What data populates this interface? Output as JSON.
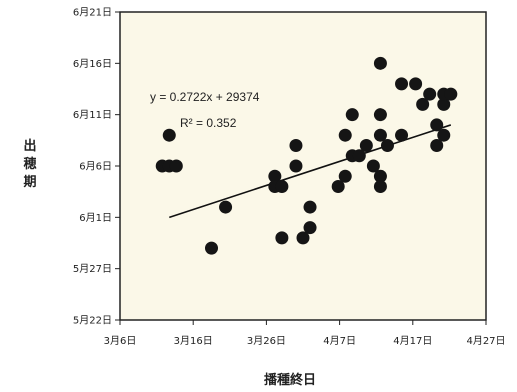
{
  "chart_data": {
    "type": "scatter",
    "title": "",
    "xlabel": "播種終日",
    "ylabel": "出穂期",
    "x_ticks": [
      "3月6日",
      "3月16日",
      "3月26日",
      "4月7日",
      "4月17日",
      "4月27日"
    ],
    "y_ticks": [
      "5月22日",
      "5月27日",
      "6月1日",
      "6月6日",
      "6月11日",
      "6月16日",
      "6月21日"
    ],
    "xlim": [
      "2023-03-06",
      "2023-04-27"
    ],
    "ylim": [
      "2023-05-22",
      "2023-06-21"
    ],
    "grid": false,
    "plot_background": "#fbf8e8",
    "marker_color": "#151515",
    "series": [
      {
        "points": [
          [
            "2023-03-12",
            "2023-06-06"
          ],
          [
            "2023-03-13",
            "2023-06-06"
          ],
          [
            "2023-03-14",
            "2023-06-06"
          ],
          [
            "2023-03-13",
            "2023-06-09"
          ],
          [
            "2023-03-19",
            "2023-05-29"
          ],
          [
            "2023-03-21",
            "2023-06-02"
          ],
          [
            "2023-03-28",
            "2023-06-05"
          ],
          [
            "2023-03-28",
            "2023-06-04"
          ],
          [
            "2023-03-29",
            "2023-06-04"
          ],
          [
            "2023-03-29",
            "2023-05-30"
          ],
          [
            "2023-03-31",
            "2023-06-06"
          ],
          [
            "2023-03-31",
            "2023-06-08"
          ],
          [
            "2023-04-01",
            "2023-05-30"
          ],
          [
            "2023-04-02",
            "2023-05-31"
          ],
          [
            "2023-04-02",
            "2023-06-02"
          ],
          [
            "2023-04-06",
            "2023-06-04"
          ],
          [
            "2023-04-07",
            "2023-06-05"
          ],
          [
            "2023-04-07",
            "2023-06-09"
          ],
          [
            "2023-04-08",
            "2023-06-07"
          ],
          [
            "2023-04-08",
            "2023-06-11"
          ],
          [
            "2023-04-09",
            "2023-06-07"
          ],
          [
            "2023-04-10",
            "2023-06-08"
          ],
          [
            "2023-04-11",
            "2023-06-06"
          ],
          [
            "2023-04-12",
            "2023-06-05"
          ],
          [
            "2023-04-12",
            "2023-06-04"
          ],
          [
            "2023-04-12",
            "2023-06-09"
          ],
          [
            "2023-04-12",
            "2023-06-11"
          ],
          [
            "2023-04-12",
            "2023-06-16"
          ],
          [
            "2023-04-13",
            "2023-06-08"
          ],
          [
            "2023-04-15",
            "2023-06-09"
          ],
          [
            "2023-04-15",
            "2023-06-14"
          ],
          [
            "2023-04-17",
            "2023-06-14"
          ],
          [
            "2023-04-18",
            "2023-06-12"
          ],
          [
            "2023-04-19",
            "2023-06-13"
          ],
          [
            "2023-04-20",
            "2023-06-10"
          ],
          [
            "2023-04-20",
            "2023-06-08"
          ],
          [
            "2023-04-21",
            "2023-06-09"
          ],
          [
            "2023-04-21",
            "2023-06-12"
          ],
          [
            "2023-04-21",
            "2023-06-13"
          ],
          [
            "2023-04-22",
            "2023-06-13"
          ]
        ]
      }
    ],
    "trendline": {
      "start": [
        "2023-03-13",
        "2023-06-01"
      ],
      "end": [
        "2023-04-22",
        "2023-06-10"
      ],
      "equation": "y = 0.2722x + 29374",
      "r_squared": "R² = 0.352"
    }
  }
}
